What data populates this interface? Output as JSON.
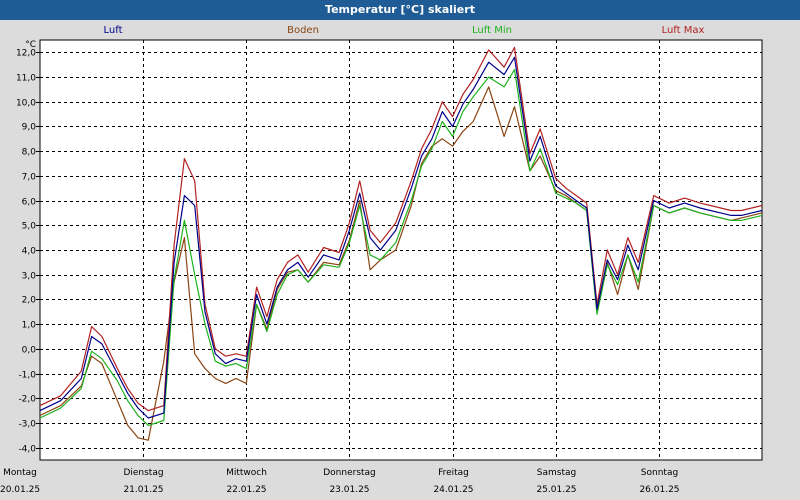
{
  "chart_data": {
    "type": "line",
    "title": "Temperatur [°C] skaliert",
    "ylabel": "°C",
    "ylim": [
      -4.5,
      12.5
    ],
    "yticks": [
      "-4,0",
      "-3,0",
      "-2,0",
      "-1,0",
      "0,0",
      "1,0",
      "2,0",
      "3,0",
      "4,0",
      "5,0",
      "6,0",
      "7,0",
      "8,0",
      "9,0",
      "10,0",
      "11,0",
      "12,0"
    ],
    "xlim": [
      0,
      7
    ],
    "days": [
      {
        "name": "Montag",
        "date": "20.01.25"
      },
      {
        "name": "Dienstag",
        "date": "21.01.25"
      },
      {
        "name": "Mittwoch",
        "date": "22.01.25"
      },
      {
        "name": "Donnerstag",
        "date": "23.01.25"
      },
      {
        "name": "Freitag",
        "date": "24.01.25"
      },
      {
        "name": "Samstag",
        "date": "25.01.25"
      },
      {
        "name": "Sonntag",
        "date": "26.01.25"
      }
    ],
    "series": [
      {
        "name": "Luft",
        "color": "#00008b",
        "x": [
          0,
          0.2,
          0.4,
          0.5,
          0.6,
          0.75,
          0.85,
          0.95,
          1.05,
          1.2,
          1.3,
          1.4,
          1.5,
          1.6,
          1.7,
          1.8,
          1.9,
          2.0,
          2.1,
          2.2,
          2.3,
          2.4,
          2.5,
          2.6,
          2.75,
          2.9,
          3.0,
          3.1,
          3.2,
          3.3,
          3.45,
          3.6,
          3.7,
          3.8,
          3.9,
          4.0,
          4.1,
          4.2,
          4.35,
          4.5,
          4.6,
          4.75,
          4.85,
          5.0,
          5.1,
          5.2,
          5.3,
          5.4,
          5.5,
          5.6,
          5.7,
          5.8,
          5.95,
          6.1,
          6.25,
          6.4,
          6.5,
          6.6,
          6.7,
          6.8,
          6.9,
          7.0
        ],
        "y": [
          -2.5,
          -2.1,
          -1.2,
          0.5,
          0.2,
          -1.0,
          -1.8,
          -2.4,
          -2.8,
          -2.6,
          3.5,
          6.2,
          5.8,
          1.5,
          -0.2,
          -0.6,
          -0.4,
          -0.5,
          2.2,
          1.0,
          2.5,
          3.2,
          3.5,
          2.9,
          3.8,
          3.6,
          4.8,
          6.3,
          4.5,
          4.0,
          4.8,
          6.5,
          7.8,
          8.5,
          9.6,
          9.0,
          9.9,
          10.5,
          11.6,
          11.1,
          11.8,
          7.6,
          8.6,
          6.6,
          6.3,
          6.0,
          5.7,
          1.6,
          3.6,
          2.8,
          4.2,
          3.2,
          6.0,
          5.7,
          5.9,
          5.7,
          5.6,
          5.5,
          5.4,
          5.4,
          5.5,
          5.6
        ]
      },
      {
        "name": "Boden",
        "color": "#8b4513",
        "x": [
          0,
          0.2,
          0.4,
          0.5,
          0.6,
          0.75,
          0.85,
          0.95,
          1.05,
          1.2,
          1.3,
          1.4,
          1.5,
          1.6,
          1.7,
          1.8,
          1.9,
          2.0,
          2.1,
          2.2,
          2.3,
          2.4,
          2.5,
          2.6,
          2.75,
          2.9,
          3.0,
          3.1,
          3.2,
          3.3,
          3.45,
          3.6,
          3.7,
          3.8,
          3.9,
          4.0,
          4.1,
          4.2,
          4.35,
          4.5,
          4.6,
          4.75,
          4.85,
          5.0,
          5.1,
          5.2,
          5.3,
          5.4,
          5.5,
          5.6,
          5.7,
          5.8,
          5.95,
          6.1,
          6.25,
          6.4,
          6.5,
          6.6,
          6.7,
          6.8,
          6.9,
          7.0
        ],
        "y": [
          -2.7,
          -2.3,
          -1.5,
          -0.3,
          -0.6,
          -2.1,
          -3.1,
          -3.6,
          -3.7,
          -0.5,
          2.7,
          4.5,
          -0.2,
          -0.8,
          -1.2,
          -1.4,
          -1.2,
          -1.4,
          1.8,
          0.8,
          2.4,
          3.1,
          3.2,
          2.7,
          3.5,
          3.4,
          4.4,
          6.0,
          3.2,
          3.6,
          4.0,
          5.8,
          7.5,
          8.2,
          8.5,
          8.2,
          8.8,
          9.2,
          10.6,
          8.6,
          9.8,
          7.2,
          7.8,
          6.4,
          6.2,
          5.9,
          5.6,
          1.6,
          3.5,
          2.2,
          3.8,
          2.4,
          5.8,
          5.5,
          5.7,
          5.5,
          5.4,
          5.3,
          5.2,
          5.3,
          5.4,
          5.5
        ]
      },
      {
        "name": "Luft Min",
        "color": "#1fb21f",
        "x": [
          0,
          0.2,
          0.4,
          0.5,
          0.6,
          0.75,
          0.85,
          0.95,
          1.05,
          1.2,
          1.3,
          1.4,
          1.5,
          1.6,
          1.7,
          1.8,
          1.9,
          2.0,
          2.1,
          2.2,
          2.3,
          2.4,
          2.5,
          2.6,
          2.75,
          2.9,
          3.0,
          3.1,
          3.2,
          3.3,
          3.45,
          3.6,
          3.7,
          3.8,
          3.9,
          4.0,
          4.1,
          4.2,
          4.35,
          4.5,
          4.6,
          4.75,
          4.85,
          5.0,
          5.1,
          5.2,
          5.3,
          5.4,
          5.5,
          5.6,
          5.7,
          5.8,
          5.95,
          6.1,
          6.25,
          6.4,
          6.5,
          6.6,
          6.7,
          6.8,
          6.9,
          7.0
        ],
        "y": [
          -2.8,
          -2.4,
          -1.6,
          -0.1,
          -0.4,
          -1.3,
          -2.1,
          -2.7,
          -3.1,
          -2.9,
          2.8,
          5.2,
          3.0,
          1.0,
          -0.5,
          -0.7,
          -0.6,
          -0.8,
          1.8,
          0.7,
          2.2,
          3.0,
          3.2,
          2.7,
          3.4,
          3.3,
          4.3,
          5.8,
          3.8,
          3.6,
          4.3,
          6.0,
          7.4,
          8.1,
          9.2,
          8.6,
          9.6,
          10.2,
          11.0,
          10.6,
          11.3,
          7.2,
          8.1,
          6.3,
          6.1,
          5.9,
          5.6,
          1.4,
          3.4,
          2.6,
          3.8,
          2.7,
          5.8,
          5.5,
          5.7,
          5.5,
          5.4,
          5.3,
          5.2,
          5.2,
          5.3,
          5.4
        ]
      },
      {
        "name": "Luft Max",
        "color": "#b22222",
        "x": [
          0,
          0.2,
          0.4,
          0.5,
          0.6,
          0.75,
          0.85,
          0.95,
          1.05,
          1.2,
          1.3,
          1.4,
          1.5,
          1.6,
          1.7,
          1.8,
          1.9,
          2.0,
          2.1,
          2.2,
          2.3,
          2.4,
          2.5,
          2.6,
          2.75,
          2.9,
          3.0,
          3.1,
          3.2,
          3.3,
          3.45,
          3.6,
          3.7,
          3.8,
          3.9,
          4.0,
          4.1,
          4.2,
          4.35,
          4.5,
          4.6,
          4.75,
          4.85,
          5.0,
          5.1,
          5.2,
          5.3,
          5.4,
          5.5,
          5.6,
          5.7,
          5.8,
          5.95,
          6.1,
          6.25,
          6.4,
          6.5,
          6.6,
          6.7,
          6.8,
          6.9,
          7.0
        ],
        "y": [
          -2.3,
          -1.9,
          -0.9,
          0.9,
          0.5,
          -0.8,
          -1.6,
          -2.2,
          -2.5,
          -2.3,
          4.2,
          7.7,
          6.8,
          1.8,
          0.0,
          -0.3,
          -0.2,
          -0.3,
          2.5,
          1.3,
          2.8,
          3.5,
          3.8,
          3.1,
          4.1,
          3.9,
          5.1,
          6.8,
          4.8,
          4.3,
          5.1,
          6.8,
          8.1,
          8.9,
          10.0,
          9.4,
          10.3,
          10.9,
          12.1,
          11.4,
          12.2,
          7.9,
          8.9,
          6.9,
          6.5,
          6.2,
          5.9,
          1.8,
          4.0,
          3.0,
          4.5,
          3.5,
          6.2,
          5.9,
          6.1,
          5.9,
          5.8,
          5.7,
          5.6,
          5.6,
          5.7,
          5.8
        ]
      }
    ]
  }
}
